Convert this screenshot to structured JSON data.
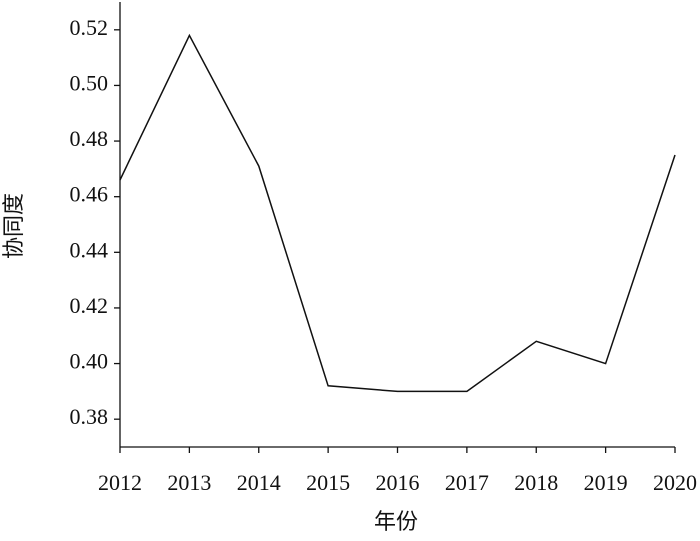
{
  "chart_data": {
    "type": "line",
    "x_label": "年份",
    "y_label": "协同度",
    "x": [
      2012,
      2013,
      2014,
      2015,
      2016,
      2017,
      2018,
      2019,
      2020
    ],
    "series": [
      {
        "color": "#111111",
        "values": [
          0.466,
          0.518,
          0.471,
          0.392,
          0.39,
          0.39,
          0.408,
          0.4,
          0.475
        ]
      }
    ],
    "xlim": [
      2012,
      2020
    ],
    "xticks": [
      2012,
      2013,
      2014,
      2015,
      2016,
      2017,
      2018,
      2019,
      2020
    ],
    "ylim": [
      0.37,
      0.53
    ],
    "yticks": [
      {
        "value": 0.38,
        "label": "0.38"
      },
      {
        "value": 0.4,
        "label": "0.40"
      },
      {
        "value": 0.42,
        "label": "0.42"
      },
      {
        "value": 0.44,
        "label": "0.44"
      },
      {
        "value": 0.46,
        "label": "0.46"
      },
      {
        "value": 0.48,
        "label": "0.48"
      },
      {
        "value": 0.5,
        "label": "0.50"
      },
      {
        "value": 0.52,
        "label": "0.52"
      }
    ],
    "grid": false
  }
}
